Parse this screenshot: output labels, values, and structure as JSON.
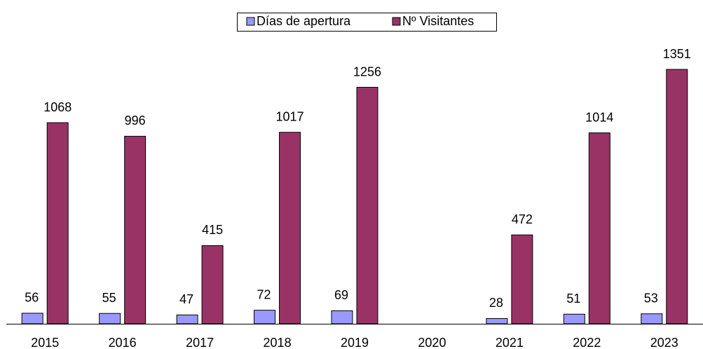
{
  "chart_data": {
    "type": "bar",
    "categories": [
      "2015",
      "2016",
      "2017",
      "2018",
      "2019",
      "2020",
      "2021",
      "2022",
      "2023"
    ],
    "series": [
      {
        "name": "Días de apertura",
        "color": "#9999ff",
        "values": [
          56,
          55,
          47,
          72,
          69,
          null,
          28,
          51,
          53
        ]
      },
      {
        "name": "Nº Visitantes",
        "color": "#993366",
        "values": [
          1068,
          996,
          415,
          1017,
          1256,
          null,
          472,
          1014,
          1351
        ]
      }
    ],
    "legend": "top"
  }
}
